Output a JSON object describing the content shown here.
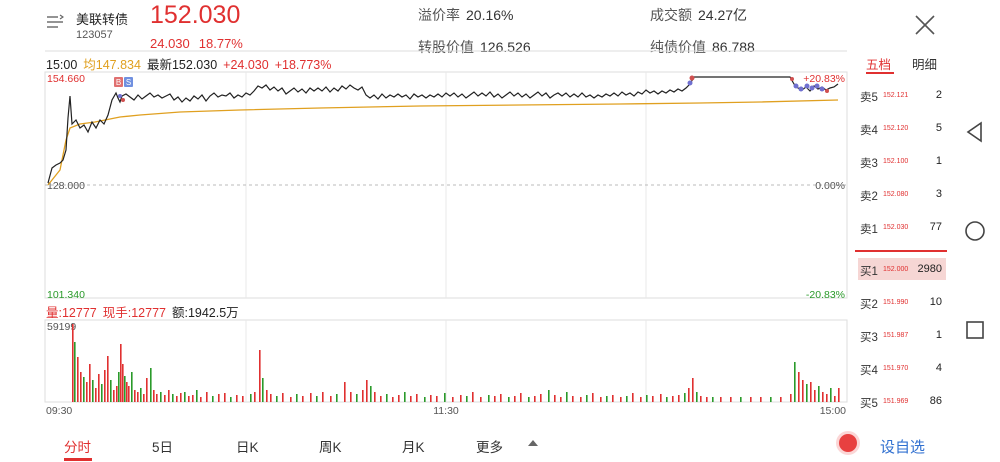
{
  "header": {
    "name": "美联转债",
    "code": "123057",
    "price": "152.030",
    "change": "24.030",
    "change_pct": "18.77%",
    "stats": [
      {
        "key": "溢价率",
        "value": "20.16%"
      },
      {
        "key": "转股价值",
        "value": "126.526"
      },
      {
        "key": "成交额",
        "value": "24.27亿"
      },
      {
        "key": "纯债价值",
        "value": "86.788"
      }
    ]
  },
  "chart_info": {
    "time": "15:00",
    "avg": "均147.834",
    "last": "最新152.030",
    "change": "+24.030",
    "change_pct": "+18.773%"
  },
  "axis": {
    "y_top": "154.660",
    "y_mid": "128.000",
    "y_bottom": "101.340",
    "pct_top": "+20.83%",
    "pct_mid": "0.00%",
    "pct_bottom": "-20.83%",
    "vol_max": "59199",
    "t_start": "09:30",
    "t_mid": "11:30",
    "t_end": "15:00"
  },
  "vol_info": {
    "vol": "量:12777",
    "now_hand": "现手:12777",
    "amount": "额:1942.5万"
  },
  "order_book": {
    "tabs": [
      "五档",
      "明细"
    ],
    "asks": [
      {
        "label": "卖5",
        "price": "152.121",
        "vol": "2"
      },
      {
        "label": "卖4",
        "price": "152.120",
        "vol": "5"
      },
      {
        "label": "卖3",
        "price": "152.100",
        "vol": "1"
      },
      {
        "label": "卖2",
        "price": "152.080",
        "vol": "3"
      },
      {
        "label": "卖1",
        "price": "152.030",
        "vol": "77"
      }
    ],
    "bids": [
      {
        "label": "买1",
        "price": "152.000",
        "vol": "2980"
      },
      {
        "label": "买2",
        "price": "151.990",
        "vol": "10"
      },
      {
        "label": "买3",
        "price": "151.987",
        "vol": "1"
      },
      {
        "label": "买4",
        "price": "151.970",
        "vol": "4"
      },
      {
        "label": "买5",
        "price": "151.969",
        "vol": "86"
      }
    ]
  },
  "bottom_tabs": [
    "分时",
    "5日",
    "日K",
    "周K",
    "月K",
    "更多"
  ],
  "custom_label": "设自选",
  "chart_markers": [
    "B",
    "S"
  ],
  "colors": {
    "up": "#e03030",
    "down": "#2a9a2a",
    "avg_line": "#e0a020",
    "price_line": "#222222",
    "link": "#3070d0"
  },
  "icons": [
    "menu-icon",
    "close-icon",
    "back-icon",
    "home-icon",
    "recents-icon",
    "record-icon",
    "more-arrow-icon"
  ]
}
